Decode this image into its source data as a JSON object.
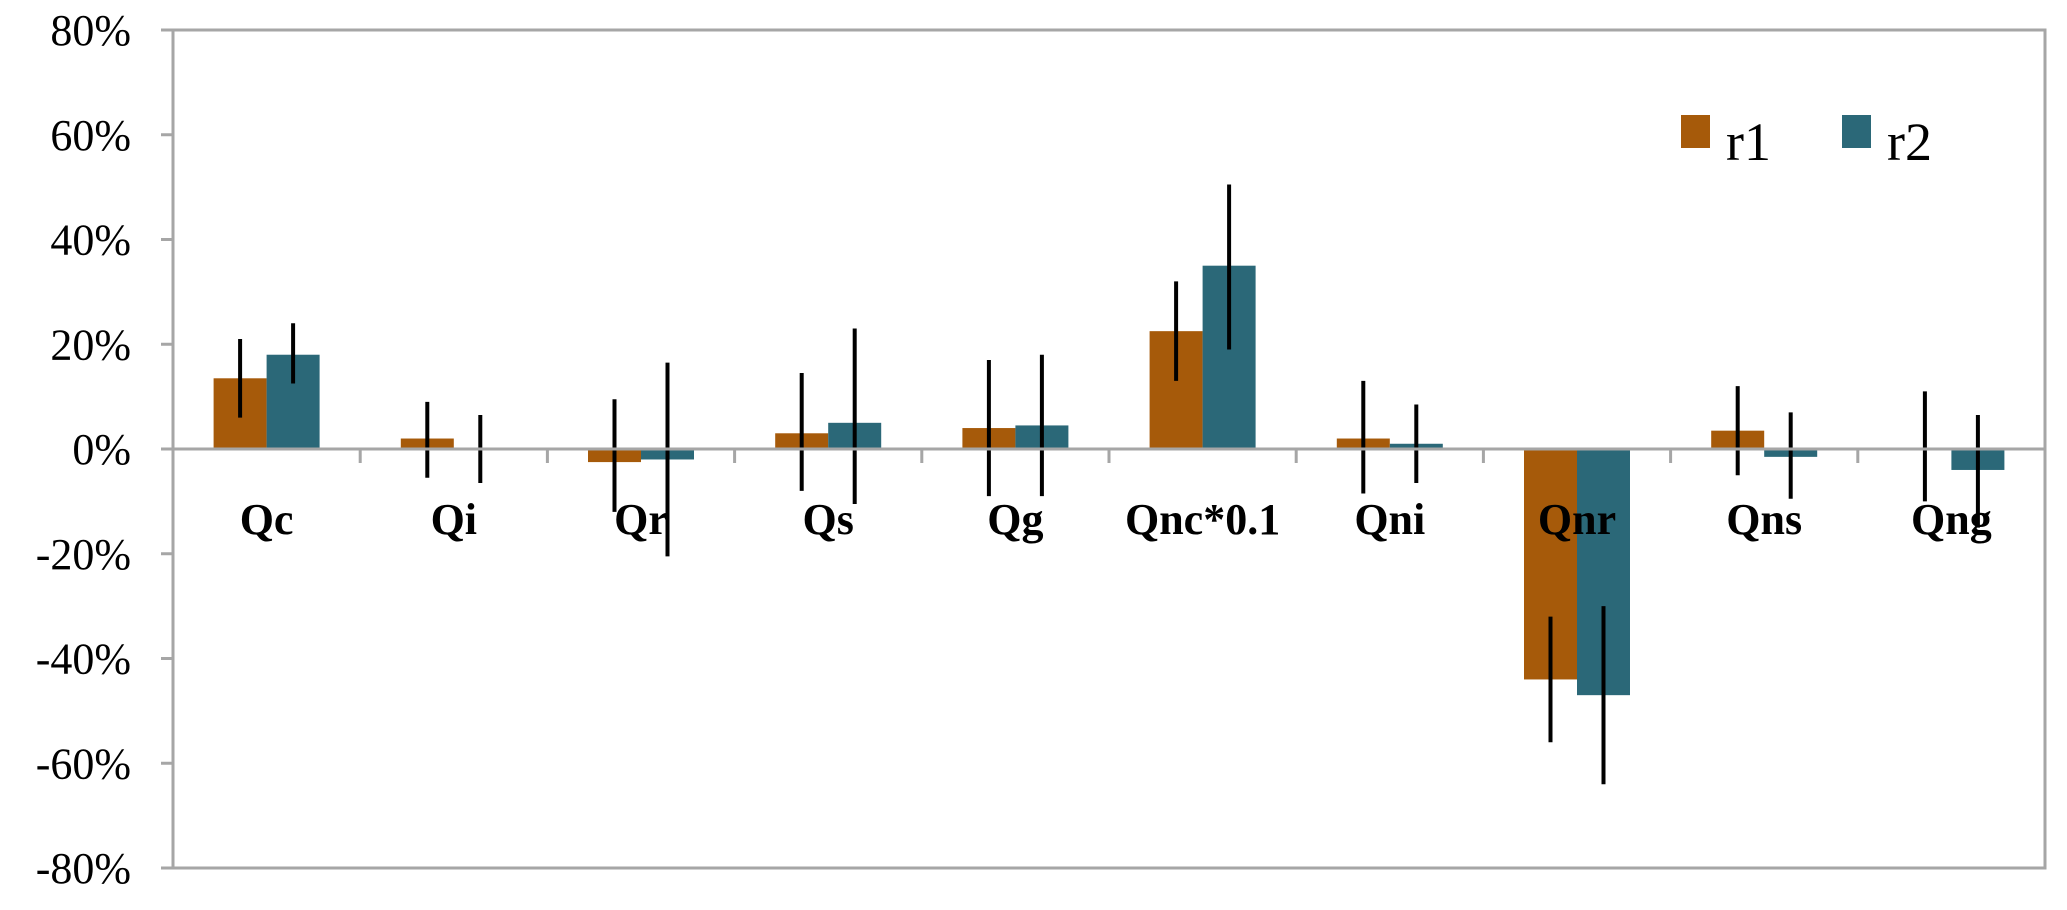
{
  "chart_data": {
    "type": "bar",
    "title": "",
    "xlabel": "",
    "ylabel": "",
    "ylim": [
      -80,
      80
    ],
    "yticks": [
      80,
      60,
      40,
      20,
      0,
      -20,
      -40,
      -60,
      -80
    ],
    "ytick_labels": [
      "80%",
      "60%",
      "40%",
      "20%",
      "0%",
      "-20%",
      "-40%",
      "-60%",
      "-80%"
    ],
    "grid": false,
    "legend_position": "top-right",
    "categories": [
      "Qc",
      "Qi",
      "Qr",
      "Qs",
      "Qg",
      "Qnc*0.1",
      "Qni",
      "Qnr",
      "Qns",
      "Qng"
    ],
    "series": [
      {
        "name": "r1",
        "color": "#A65A0A",
        "values": [
          13.5,
          2,
          -2.5,
          3,
          4,
          22.5,
          2,
          -44,
          3.5,
          0
        ],
        "error_low": [
          6,
          -5.5,
          -12,
          -8,
          -9,
          13,
          -8.5,
          -56,
          -5,
          -10
        ],
        "error_high": [
          21,
          9,
          9.5,
          14.5,
          17,
          32,
          13,
          -32,
          12,
          11
        ]
      },
      {
        "name": "r2",
        "color": "#2B6878",
        "values": [
          18,
          0,
          -2,
          5,
          4.5,
          35,
          1,
          -47,
          -1.5,
          -4
        ],
        "error_low": [
          12.5,
          -6.5,
          -20.5,
          -10.5,
          -9,
          19,
          -6.5,
          -64,
          -9.5,
          -15
        ],
        "error_high": [
          24,
          6.5,
          16.5,
          23,
          18,
          50.5,
          8.5,
          -30,
          7,
          6.5
        ]
      }
    ]
  }
}
